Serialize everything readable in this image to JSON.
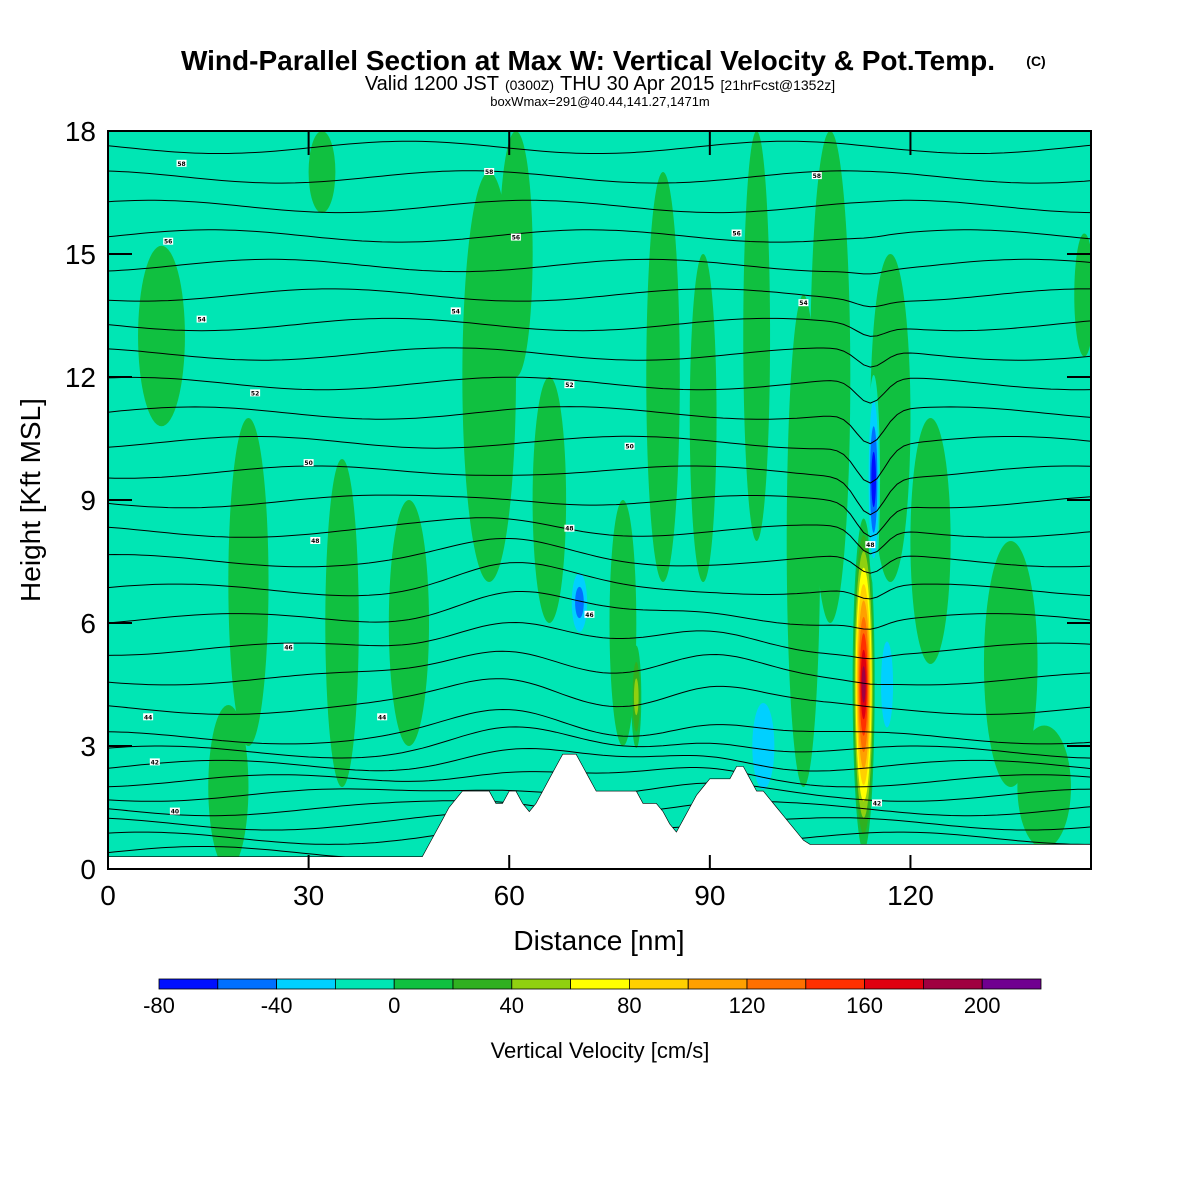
{
  "title": {
    "main": "Wind-Parallel Section at Max W: Vertical Velocity & Pot.Temp.",
    "main_mark": "(C)",
    "line2_a": "Valid 1200 JST",
    "line2_b": "(0300Z)",
    "line2_c": "THU 30 Apr 2015",
    "line2_d": "[21hrFcst@1352z]",
    "line3": "boxWmax=291@40.44,141.27,1471m"
  },
  "chart_data": {
    "type": "heatmap",
    "xlabel": "Distance [nm]",
    "ylabel": "Height [Kft MSL]",
    "xlim": [
      0,
      147
    ],
    "ylim": [
      0,
      18
    ],
    "x_ticks": [
      0,
      30,
      60,
      90,
      120
    ],
    "y_ticks": [
      0,
      3,
      6,
      9,
      12,
      15,
      18
    ],
    "background_value_color": "#00e6b4",
    "colorbar": {
      "label": "Vertical Velocity [cm/s]",
      "tick_values": [
        -80,
        -40,
        0,
        40,
        80,
        120,
        160,
        200
      ],
      "tick_labels": [
        "-80",
        "-40",
        "0",
        "40",
        "80",
        "120",
        "160",
        "200"
      ],
      "bins": [
        {
          "from": -80,
          "to": -60,
          "color": "#0010ff"
        },
        {
          "from": -60,
          "to": -40,
          "color": "#0070ff"
        },
        {
          "from": -40,
          "to": -20,
          "color": "#00d0ff"
        },
        {
          "from": -20,
          "to": 0,
          "color": "#00e6b4"
        },
        {
          "from": 0,
          "to": 20,
          "color": "#10c040"
        },
        {
          "from": 20,
          "to": 40,
          "color": "#30b020"
        },
        {
          "from": 40,
          "to": 60,
          "color": "#90d010"
        },
        {
          "from": 60,
          "to": 80,
          "color": "#ffff00"
        },
        {
          "from": 80,
          "to": 100,
          "color": "#ffd000"
        },
        {
          "from": 100,
          "to": 120,
          "color": "#ffa000"
        },
        {
          "from": 120,
          "to": 140,
          "color": "#ff7000"
        },
        {
          "from": 140,
          "to": 160,
          "color": "#ff3000"
        },
        {
          "from": 160,
          "to": 180,
          "color": "#e00010"
        },
        {
          "from": 180,
          "to": 200,
          "color": "#a00040"
        },
        {
          "from": 200,
          "to": 220,
          "color": "#700090"
        }
      ]
    },
    "terrain_profile": [
      [
        0,
        0.3
      ],
      [
        47,
        0.3
      ],
      [
        48,
        0.6
      ],
      [
        49,
        0.9
      ],
      [
        50,
        1.2
      ],
      [
        51,
        1.5
      ],
      [
        52,
        1.7
      ],
      [
        53,
        1.9
      ],
      [
        57,
        1.9
      ],
      [
        58,
        1.6
      ],
      [
        59,
        1.6
      ],
      [
        60,
        1.9
      ],
      [
        61,
        1.9
      ],
      [
        62,
        1.6
      ],
      [
        63,
        1.4
      ],
      [
        64,
        1.6
      ],
      [
        65,
        1.9
      ],
      [
        66,
        2.2
      ],
      [
        67,
        2.5
      ],
      [
        68,
        2.8
      ],
      [
        70,
        2.8
      ],
      [
        71,
        2.5
      ],
      [
        72,
        2.2
      ],
      [
        73,
        1.9
      ],
      [
        79,
        1.9
      ],
      [
        80,
        1.6
      ],
      [
        82,
        1.6
      ],
      [
        83,
        1.4
      ],
      [
        84,
        1.1
      ],
      [
        85,
        0.9
      ],
      [
        86,
        1.2
      ],
      [
        87,
        1.5
      ],
      [
        88,
        1.8
      ],
      [
        89,
        2.0
      ],
      [
        90,
        2.2
      ],
      [
        93,
        2.2
      ],
      [
        94,
        2.5
      ],
      [
        95,
        2.5
      ],
      [
        96,
        2.2
      ],
      [
        97,
        1.9
      ],
      [
        98,
        1.9
      ],
      [
        99,
        1.7
      ],
      [
        100,
        1.5
      ],
      [
        101,
        1.3
      ],
      [
        102,
        1.1
      ],
      [
        103,
        0.9
      ],
      [
        104,
        0.7
      ],
      [
        105,
        0.6
      ],
      [
        147,
        0.6
      ]
    ],
    "velocity_features": [
      {
        "name": "main-updraft",
        "x": 113,
        "y": 4.5,
        "rx": 1.5,
        "ry": 4.0,
        "peak": 180
      },
      {
        "name": "main-downdraft",
        "x": 114.5,
        "y": 9.5,
        "rx": 0.8,
        "ry": 2.5,
        "peak": -75
      },
      {
        "name": "downdraft-flank",
        "x": 116.5,
        "y": 4.5,
        "rx": 1.5,
        "ry": 2.0,
        "peak": -30
      },
      {
        "name": "updraft-97",
        "x": 98,
        "y": 3.0,
        "rx": 3.0,
        "ry": 2.0,
        "peak": -30
      },
      {
        "name": "downdraft-70",
        "x": 70.5,
        "y": 6.5,
        "rx": 1.5,
        "ry": 1.0,
        "peak": -55
      },
      {
        "name": "updraft-79",
        "x": 79,
        "y": 4.2,
        "rx": 0.6,
        "ry": 1.2,
        "peak": 45
      }
    ],
    "isentrope_labels": [
      {
        "x": 11,
        "y": 17.2,
        "text": "58"
      },
      {
        "x": 57,
        "y": 17.0,
        "text": "58"
      },
      {
        "x": 106,
        "y": 16.9,
        "text": "58"
      },
      {
        "x": 9,
        "y": 15.3,
        "text": "56"
      },
      {
        "x": 61,
        "y": 15.4,
        "text": "56"
      },
      {
        "x": 94,
        "y": 15.5,
        "text": "56"
      },
      {
        "x": 14,
        "y": 13.4,
        "text": "54"
      },
      {
        "x": 52,
        "y": 13.6,
        "text": "54"
      },
      {
        "x": 104,
        "y": 13.8,
        "text": "54"
      },
      {
        "x": 22,
        "y": 11.6,
        "text": "52"
      },
      {
        "x": 69,
        "y": 11.8,
        "text": "52"
      },
      {
        "x": 30,
        "y": 9.9,
        "text": "50"
      },
      {
        "x": 78,
        "y": 10.3,
        "text": "50"
      },
      {
        "x": 31,
        "y": 8.0,
        "text": "48"
      },
      {
        "x": 69,
        "y": 8.3,
        "text": "48"
      },
      {
        "x": 114,
        "y": 7.9,
        "text": "48"
      },
      {
        "x": 27,
        "y": 5.4,
        "text": "46"
      },
      {
        "x": 72,
        "y": 6.2,
        "text": "46"
      },
      {
        "x": 6,
        "y": 3.7,
        "text": "44"
      },
      {
        "x": 41,
        "y": 3.7,
        "text": "44"
      },
      {
        "x": 7,
        "y": 2.6,
        "text": "42"
      },
      {
        "x": 10,
        "y": 1.4,
        "text": "40"
      },
      {
        "x": 115,
        "y": 1.6,
        "text": "42"
      }
    ]
  }
}
